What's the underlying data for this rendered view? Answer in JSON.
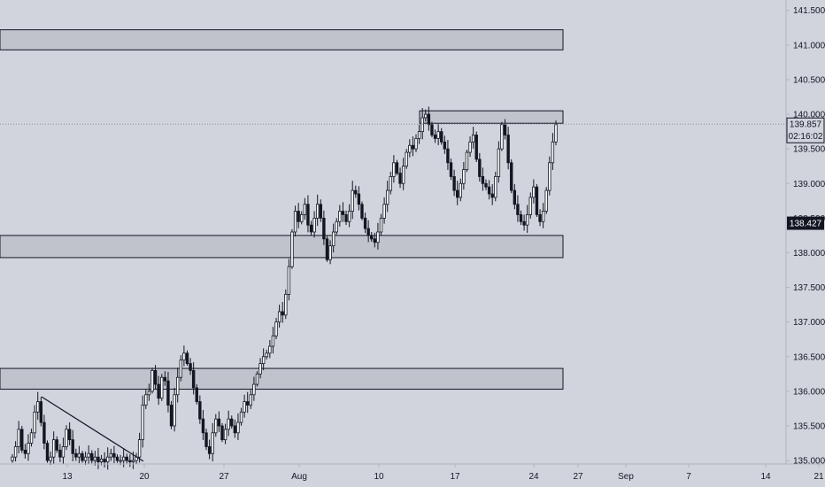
{
  "chart_data": {
    "type": "candlestick",
    "y_axis": {
      "ticks": [
        "135.000",
        "135.500",
        "136.000",
        "136.500",
        "137.000",
        "137.500",
        "138.000",
        "138.500",
        "139.000",
        "139.500",
        "140.000",
        "140.500",
        "141.000",
        "141.500"
      ],
      "range": [
        134.95,
        141.65
      ]
    },
    "x_axis": {
      "ticks": [
        "13",
        "20",
        "27",
        "Aug",
        "10",
        "17",
        "24",
        "27",
        "Sep",
        "7",
        "14",
        "21"
      ]
    },
    "current_price": "139.857",
    "countdown": "02:16:02",
    "marked_price": "138.427",
    "zones": [
      {
        "name": "resistance-zone-top",
        "from": 140.93,
        "to": 141.22
      },
      {
        "name": "resistance-zone-recent",
        "from": 139.87,
        "to": 140.05
      },
      {
        "name": "support-zone-middle",
        "from": 137.93,
        "to": 138.25
      },
      {
        "name": "support-zone-bottom",
        "from": 136.03,
        "to": 136.33
      }
    ],
    "trendline": {
      "from": 135.92,
      "to": 134.99
    },
    "price_path": [
      135.05,
      135.2,
      135.45,
      135.15,
      135.1,
      135.25,
      135.4,
      135.7,
      135.85,
      135.55,
      135.25,
      135.0,
      135.05,
      135.3,
      135.15,
      135.05,
      135.2,
      135.45,
      135.3,
      135.1,
      135.05,
      135.1,
      135.0,
      135.05,
      135.1,
      135.0,
      135.05,
      134.98,
      135.02,
      134.98,
      135.05,
      135.1,
      135.05,
      135.0,
      135.0,
      135.05,
      135.0,
      134.98,
      135.0,
      135.05,
      135.3,
      135.8,
      135.95,
      136.0,
      136.3,
      136.1,
      135.9,
      136.2,
      136.15,
      135.8,
      135.5,
      135.95,
      136.2,
      136.45,
      136.55,
      136.4,
      136.3,
      136.05,
      135.85,
      135.6,
      135.4,
      135.2,
      135.1,
      135.4,
      135.6,
      135.5,
      135.3,
      135.45,
      135.6,
      135.5,
      135.4,
      135.55,
      135.7,
      135.85,
      135.8,
      135.95,
      136.1,
      136.25,
      136.4,
      136.5,
      136.55,
      136.65,
      136.8,
      137.0,
      137.15,
      137.1,
      137.4,
      137.8,
      138.3,
      138.6,
      138.45,
      138.55,
      138.7,
      138.4,
      138.3,
      138.5,
      138.7,
      138.5,
      138.2,
      137.9,
      138.1,
      138.3,
      138.45,
      138.6,
      138.55,
      138.45,
      138.6,
      138.9,
      138.85,
      138.7,
      138.5,
      138.35,
      138.25,
      138.2,
      138.15,
      138.3,
      138.5,
      138.7,
      138.9,
      139.1,
      139.3,
      139.15,
      139.0,
      139.25,
      139.45,
      139.55,
      139.5,
      139.65,
      139.75,
      139.95,
      140.0,
      139.85,
      139.7,
      139.65,
      139.75,
      139.6,
      139.5,
      139.3,
      139.1,
      138.9,
      138.8,
      139.0,
      139.2,
      139.45,
      139.6,
      139.7,
      139.35,
      139.1,
      139.0,
      138.95,
      138.85,
      138.8,
      139.1,
      139.5,
      139.85,
      139.7,
      139.3,
      138.9,
      138.7,
      138.55,
      138.45,
      138.4,
      138.55,
      138.8,
      138.95,
      138.55,
      138.45,
      138.6,
      138.9,
      139.3,
      139.6,
      139.85
    ]
  }
}
